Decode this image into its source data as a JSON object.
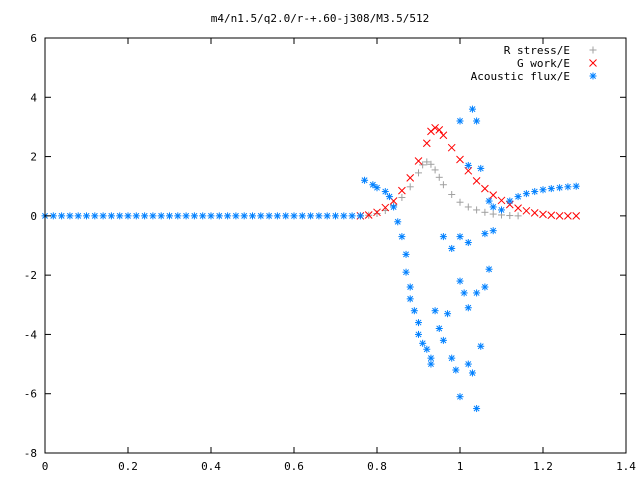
{
  "chart_data": {
    "type": "scatter",
    "title": "m4/n1.5/q2.0/r-+.60-j308/M3.5/512",
    "xlabel": "",
    "ylabel": "",
    "xlim": [
      0,
      1.4
    ],
    "ylim": [
      -8,
      6
    ],
    "x_ticks": [
      "0",
      "0.2",
      "0.4",
      "0.6",
      "0.8",
      "1",
      "1.2",
      "1.4"
    ],
    "y_ticks": [
      "6",
      "4",
      "2",
      "0",
      "-2",
      "-4",
      "-6",
      "-8"
    ],
    "grid": false,
    "legend_position": "top-right",
    "series": [
      {
        "name": "R stress/E",
        "marker": "plus",
        "color": "#a0a0a0",
        "points": [
          [
            0.76,
            0.0
          ],
          [
            0.78,
            0.02
          ],
          [
            0.8,
            0.08
          ],
          [
            0.82,
            0.18
          ],
          [
            0.84,
            0.35
          ],
          [
            0.86,
            0.62
          ],
          [
            0.88,
            0.98
          ],
          [
            0.9,
            1.45
          ],
          [
            0.91,
            1.72
          ],
          [
            0.92,
            1.82
          ],
          [
            0.93,
            1.74
          ],
          [
            0.94,
            1.55
          ],
          [
            0.95,
            1.3
          ],
          [
            0.96,
            1.05
          ],
          [
            0.98,
            0.72
          ],
          [
            1.0,
            0.46
          ],
          [
            1.02,
            0.3
          ],
          [
            1.04,
            0.2
          ],
          [
            1.06,
            0.12
          ],
          [
            1.08,
            0.06
          ],
          [
            1.1,
            0.03
          ],
          [
            1.12,
            0.01
          ],
          [
            1.14,
            0.0
          ]
        ]
      },
      {
        "name": "G work/E",
        "marker": "cross",
        "color": "#ff0000",
        "points": [
          [
            0.76,
            0.0
          ],
          [
            0.78,
            0.03
          ],
          [
            0.8,
            0.12
          ],
          [
            0.82,
            0.28
          ],
          [
            0.84,
            0.5
          ],
          [
            0.86,
            0.85
          ],
          [
            0.88,
            1.28
          ],
          [
            0.9,
            1.85
          ],
          [
            0.92,
            2.45
          ],
          [
            0.93,
            2.85
          ],
          [
            0.94,
            2.97
          ],
          [
            0.95,
            2.9
          ],
          [
            0.96,
            2.72
          ],
          [
            0.98,
            2.3
          ],
          [
            1.0,
            1.9
          ],
          [
            1.02,
            1.52
          ],
          [
            1.04,
            1.18
          ],
          [
            1.06,
            0.92
          ],
          [
            1.08,
            0.7
          ],
          [
            1.1,
            0.52
          ],
          [
            1.12,
            0.38
          ],
          [
            1.14,
            0.26
          ],
          [
            1.16,
            0.17
          ],
          [
            1.18,
            0.1
          ],
          [
            1.2,
            0.05
          ],
          [
            1.22,
            0.02
          ],
          [
            1.24,
            0.0
          ],
          [
            1.26,
            0.0
          ],
          [
            1.28,
            0.0
          ]
        ]
      },
      {
        "name": "Acoustic flux/E",
        "marker": "star",
        "color": "#0080ff",
        "points": [
          [
            0.77,
            1.2
          ],
          [
            0.79,
            1.05
          ],
          [
            0.8,
            0.95
          ],
          [
            0.82,
            0.82
          ],
          [
            0.83,
            0.65
          ],
          [
            0.84,
            0.3
          ],
          [
            0.85,
            -0.2
          ],
          [
            0.86,
            -0.7
          ],
          [
            0.87,
            -1.3
          ],
          [
            0.87,
            -1.9
          ],
          [
            0.88,
            -2.4
          ],
          [
            0.88,
            -2.8
          ],
          [
            0.89,
            -3.2
          ],
          [
            0.9,
            -3.6
          ],
          [
            0.9,
            -4.0
          ],
          [
            0.91,
            -4.3
          ],
          [
            0.92,
            -4.5
          ],
          [
            0.93,
            -4.8
          ],
          [
            0.93,
            -5.0
          ],
          [
            0.94,
            -3.2
          ],
          [
            0.95,
            -3.8
          ],
          [
            0.96,
            -4.2
          ],
          [
            0.97,
            -3.3
          ],
          [
            0.98,
            -4.8
          ],
          [
            0.99,
            -5.2
          ],
          [
            1.0,
            -6.1
          ],
          [
            1.0,
            -2.2
          ],
          [
            1.01,
            -2.6
          ],
          [
            1.02,
            -3.1
          ],
          [
            1.02,
            -5.0
          ],
          [
            1.03,
            -5.3
          ],
          [
            1.04,
            -6.5
          ],
          [
            1.04,
            -2.6
          ],
          [
            1.05,
            -4.4
          ],
          [
            1.06,
            -2.4
          ],
          [
            1.07,
            -1.8
          ],
          [
            0.96,
            -0.7
          ],
          [
            0.98,
            -1.1
          ],
          [
            1.0,
            -0.7
          ],
          [
            1.02,
            -0.9
          ],
          [
            1.0,
            3.2
          ],
          [
            1.03,
            3.6
          ],
          [
            1.04,
            3.2
          ],
          [
            1.02,
            1.7
          ],
          [
            1.05,
            1.6
          ],
          [
            1.06,
            -0.6
          ],
          [
            1.08,
            -0.5
          ],
          [
            1.07,
            0.5
          ],
          [
            1.08,
            0.3
          ],
          [
            1.1,
            0.2
          ],
          [
            1.12,
            0.5
          ],
          [
            1.14,
            0.65
          ],
          [
            1.16,
            0.75
          ],
          [
            1.18,
            0.82
          ],
          [
            1.2,
            0.88
          ],
          [
            1.22,
            0.92
          ],
          [
            1.24,
            0.95
          ],
          [
            1.26,
            0.98
          ],
          [
            1.28,
            1.0
          ],
          [
            0.0,
            0.0
          ],
          [
            0.02,
            0.0
          ],
          [
            0.04,
            0.0
          ],
          [
            0.06,
            0.0
          ],
          [
            0.08,
            0.0
          ],
          [
            0.1,
            0.0
          ],
          [
            0.12,
            0.0
          ],
          [
            0.14,
            0.0
          ],
          [
            0.16,
            0.0
          ],
          [
            0.18,
            0.0
          ],
          [
            0.2,
            0.0
          ],
          [
            0.22,
            0.0
          ],
          [
            0.24,
            0.0
          ],
          [
            0.26,
            0.0
          ],
          [
            0.28,
            0.0
          ],
          [
            0.3,
            0.0
          ],
          [
            0.32,
            0.0
          ],
          [
            0.34,
            0.0
          ],
          [
            0.36,
            0.0
          ],
          [
            0.38,
            0.0
          ],
          [
            0.4,
            0.0
          ],
          [
            0.42,
            0.0
          ],
          [
            0.44,
            0.0
          ],
          [
            0.46,
            0.0
          ],
          [
            0.48,
            0.0
          ],
          [
            0.5,
            0.0
          ],
          [
            0.52,
            0.0
          ],
          [
            0.54,
            0.0
          ],
          [
            0.56,
            0.0
          ],
          [
            0.58,
            0.0
          ],
          [
            0.6,
            0.0
          ],
          [
            0.62,
            0.0
          ],
          [
            0.64,
            0.0
          ],
          [
            0.66,
            0.0
          ],
          [
            0.68,
            0.0
          ],
          [
            0.7,
            0.0
          ],
          [
            0.72,
            0.0
          ],
          [
            0.74,
            0.0
          ],
          [
            0.76,
            0.0
          ]
        ]
      }
    ]
  }
}
